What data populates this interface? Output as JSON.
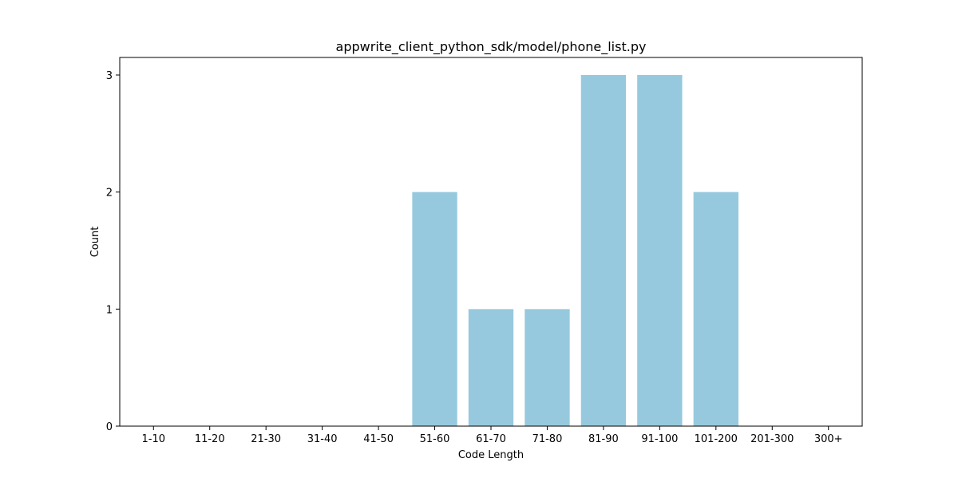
{
  "chart_data": {
    "type": "bar",
    "title": "appwrite_client_python_sdk/model/phone_list.py",
    "xlabel": "Code Length",
    "ylabel": "Count",
    "categories": [
      "1-10",
      "11-20",
      "21-30",
      "31-40",
      "41-50",
      "51-60",
      "61-70",
      "71-80",
      "81-90",
      "91-100",
      "101-200",
      "201-300",
      "300+"
    ],
    "values": [
      0,
      0,
      0,
      0,
      0,
      2,
      1,
      1,
      3,
      3,
      2,
      0,
      0
    ],
    "ylim": [
      0,
      3.15
    ],
    "yticks": [
      0,
      1,
      2,
      3
    ],
    "bar_color": "#97c9de",
    "grid": false,
    "legend": "none"
  }
}
